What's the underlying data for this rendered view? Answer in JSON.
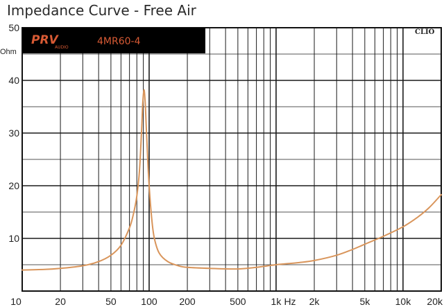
{
  "chart_data": {
    "type": "line",
    "title": "Impedance Curve - Free Air",
    "brand": "PRV",
    "brand_sub": "AUDIO",
    "model": "4MR60-4",
    "software": "CLIO",
    "y_unit": "Ohm",
    "x_unit": "Hz",
    "xscale": "log",
    "xlim": [
      10,
      20000
    ],
    "ylim": [
      0,
      50
    ],
    "grid": true,
    "x_ticks": [
      {
        "value": 10,
        "label": "10"
      },
      {
        "value": 20,
        "label": "20"
      },
      {
        "value": 50,
        "label": "50"
      },
      {
        "value": 100,
        "label": "100"
      },
      {
        "value": 200,
        "label": "200"
      },
      {
        "value": 500,
        "label": "500"
      },
      {
        "value": 1000,
        "label": "1k"
      },
      {
        "value": 2000,
        "label": "2k"
      },
      {
        "value": 5000,
        "label": "5k"
      },
      {
        "value": 10000,
        "label": "10k"
      },
      {
        "value": 20000,
        "label": "20k"
      }
    ],
    "y_ticks": [
      {
        "value": 0,
        "label": ""
      },
      {
        "value": 10,
        "label": "10"
      },
      {
        "value": 20,
        "label": "20"
      },
      {
        "value": 30,
        "label": "30"
      },
      {
        "value": 40,
        "label": "40"
      },
      {
        "value": 50,
        "label": "50"
      }
    ],
    "series": [
      {
        "color": "#d9955b",
        "x": [
          10,
          15,
          20,
          30,
          40,
          50,
          60,
          70,
          75,
          80,
          84,
          87,
          89,
          91,
          93,
          95,
          97,
          100,
          105,
          110,
          120,
          140,
          170,
          200,
          300,
          500,
          700,
          1000,
          1500,
          2000,
          3000,
          4000,
          5000,
          7000,
          10000,
          13000,
          16000,
          20000
        ],
        "y": [
          4.0,
          4.1,
          4.3,
          4.8,
          5.6,
          6.8,
          8.7,
          12.0,
          14.5,
          18.0,
          23.0,
          30.0,
          35.5,
          38.2,
          36.0,
          31.0,
          26.0,
          20.0,
          13.5,
          10.0,
          7.2,
          5.6,
          4.8,
          4.5,
          4.3,
          4.2,
          4.5,
          5.0,
          5.4,
          5.8,
          6.8,
          7.9,
          8.9,
          10.4,
          12.2,
          14.0,
          15.8,
          18.3
        ]
      }
    ]
  }
}
